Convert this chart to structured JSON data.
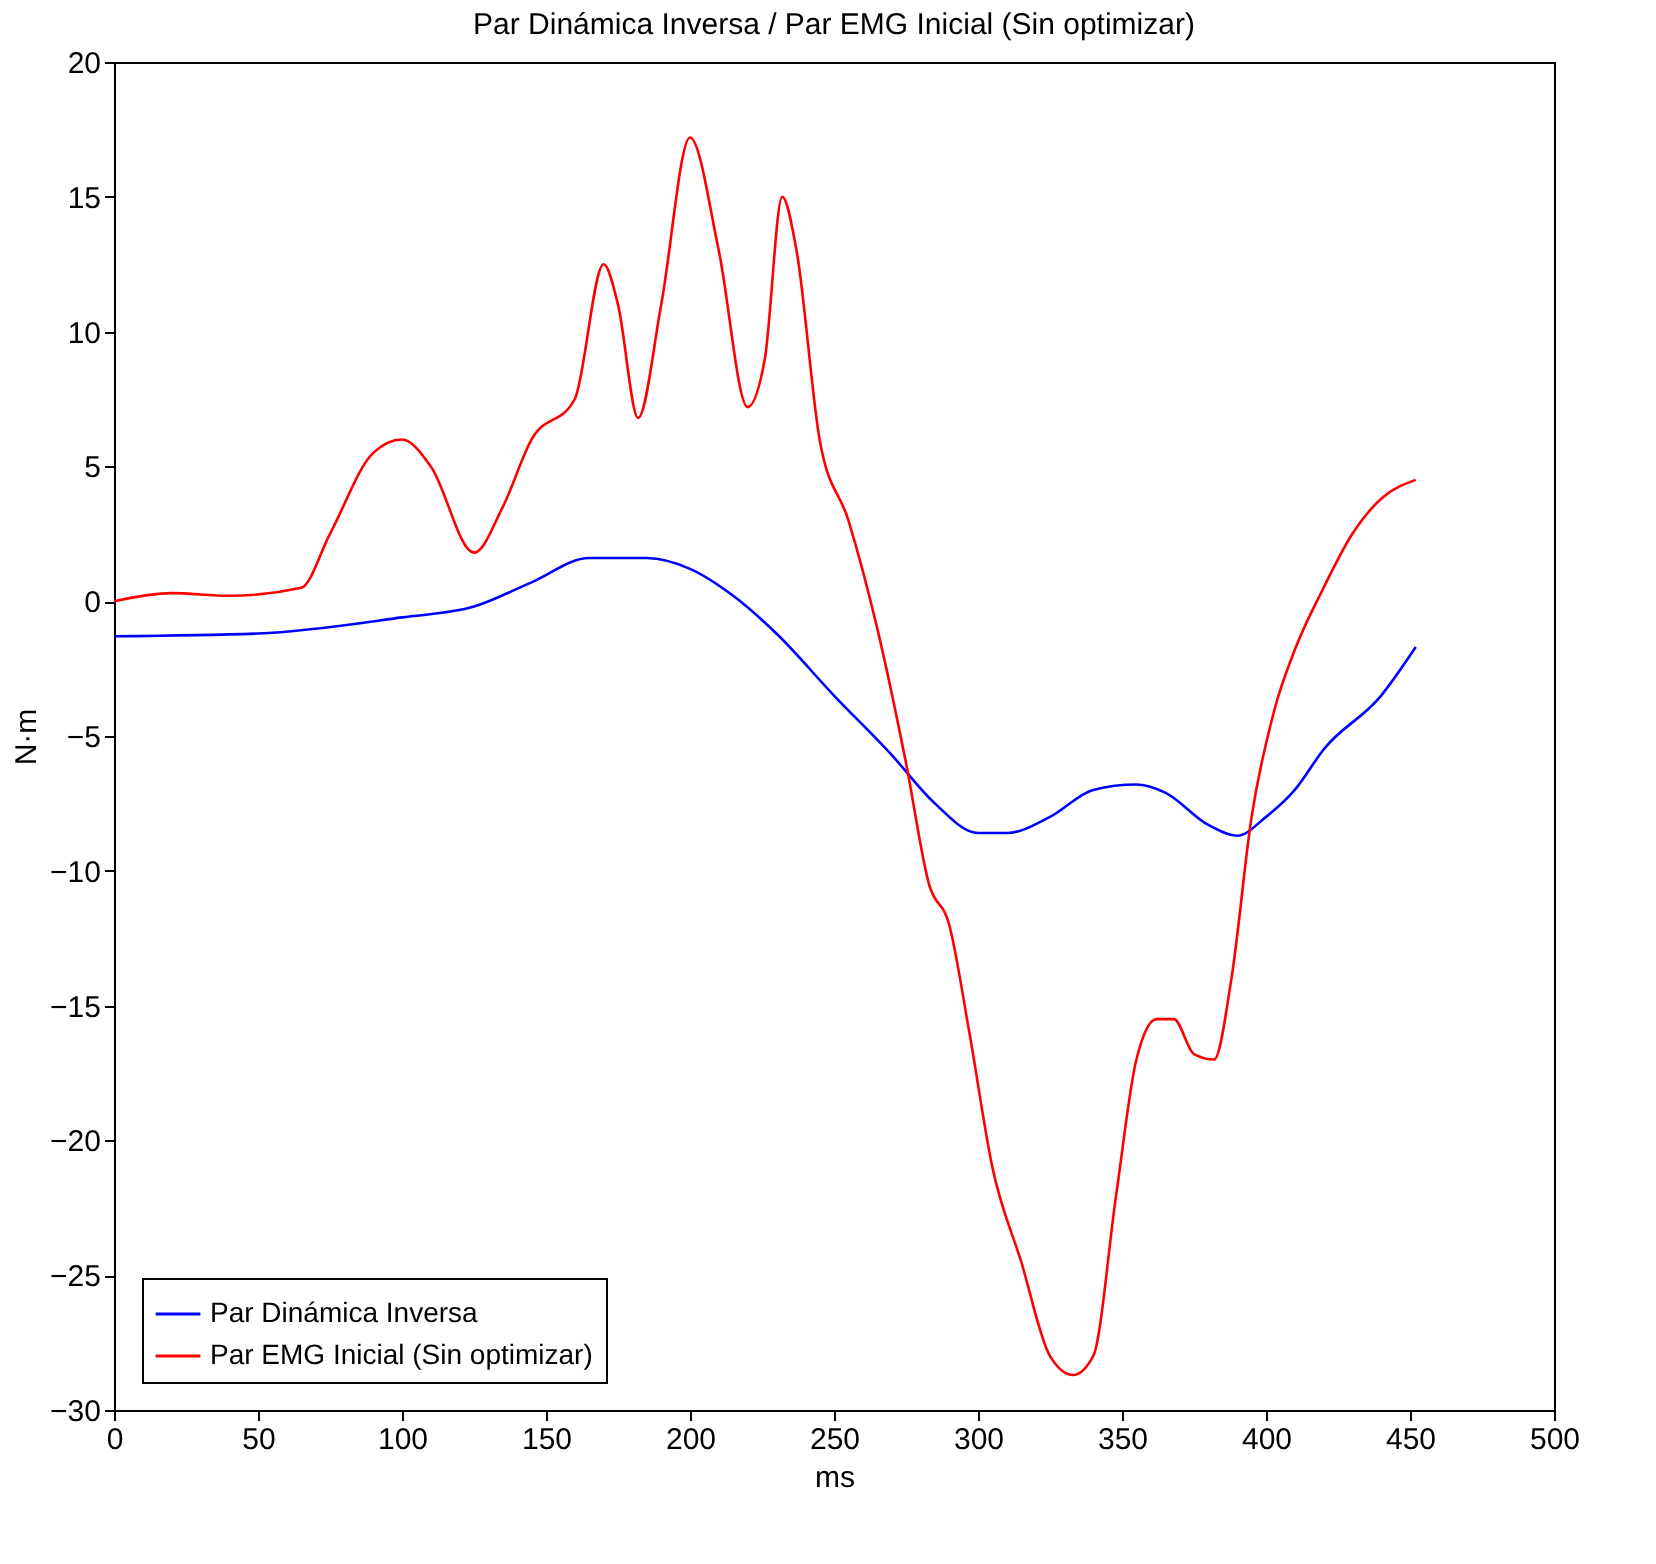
{
  "chart_data": {
    "type": "line",
    "title": "Par Dinámica Inversa / Par EMG Inicial (Sin optimizar)",
    "xlabel": "ms",
    "ylabel": "N·m",
    "xlim": [
      0,
      500
    ],
    "xticks": [
      0,
      50,
      100,
      150,
      200,
      250,
      300,
      350,
      400,
      450,
      500
    ],
    "ylim": [
      -30,
      20
    ],
    "yticks": [
      -30,
      -25,
      -20,
      -15,
      -10,
      -5,
      0,
      5,
      10,
      15,
      20
    ],
    "grid": false,
    "legend": "bottom left",
    "marker": "none",
    "line_style": "solid",
    "series": [
      {
        "name": "Par Dinámica Inversa",
        "color": "#0000ff",
        "x": [
          0,
          50,
          100,
          125,
          145,
          165,
          185,
          200,
          215,
          230,
          250,
          270,
          285,
          300,
          310,
          325,
          340,
          355,
          365,
          380,
          390,
          400,
          410,
          420,
          440,
          452
        ],
        "values": [
          -1.3,
          -1.2,
          -0.6,
          -0.2,
          0.7,
          1.6,
          1.6,
          1.2,
          0.2,
          -1.2,
          -3.5,
          -5.7,
          -7.5,
          -8.6,
          -8.6,
          -8,
          -7,
          -6.8,
          -7.1,
          -8.3,
          -8.7,
          -8,
          -7,
          -5.5,
          -3.5,
          -1.7
        ]
      },
      {
        "name": "Par EMG Inicial (Sin optimizar)",
        "color": "#ff0000",
        "x": [
          0,
          20,
          40,
          65,
          75,
          90,
          100,
          110,
          125,
          135,
          145,
          160,
          170,
          175,
          182,
          190,
          200,
          210,
          220,
          226,
          232,
          237,
          245,
          255,
          265,
          275,
          283,
          290,
          297,
          305,
          315,
          325,
          333,
          340,
          348,
          355,
          362,
          368,
          375,
          382,
          388,
          395,
          403,
          410,
          420,
          430,
          440,
          452
        ],
        "values": [
          0,
          0.3,
          0.2,
          0.5,
          2.5,
          5.5,
          6,
          5,
          1.8,
          3.5,
          6,
          7.5,
          12.5,
          11,
          6.8,
          11,
          17.2,
          13,
          7.2,
          9,
          15,
          13,
          6,
          3,
          -1,
          -6,
          -10.5,
          -12,
          -16,
          -21,
          -24.5,
          -28,
          -28.7,
          -28,
          -22,
          -17,
          -15.5,
          -15.5,
          -16.8,
          -17,
          -14,
          -8,
          -4,
          -1.8,
          0.5,
          2.5,
          3.8,
          4.5
        ]
      }
    ]
  }
}
